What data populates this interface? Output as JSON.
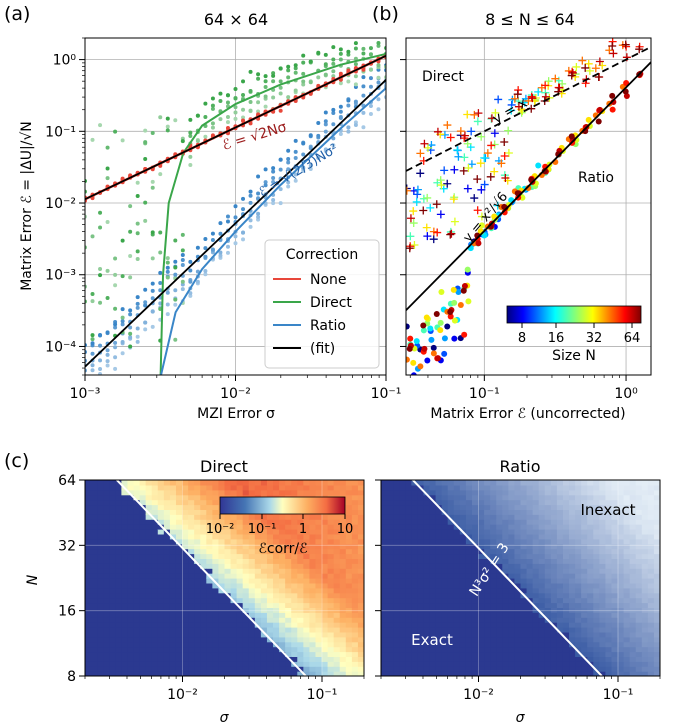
{
  "panel_labels": {
    "a": "(a)",
    "b": "(b)",
    "c": "(c)"
  },
  "chart_data": [
    {
      "id": "a",
      "type": "scatter",
      "title": "64 × 64",
      "xlabel": "MZI Error σ",
      "ylabel": "Matrix Error ℰ = |ΔU|/√N",
      "xscale": "log",
      "yscale": "log",
      "xlim": [
        0.001,
        0.1
      ],
      "ylim": [
        4e-05,
        2
      ],
      "x_ticks": [
        {
          "v": 0.001,
          "label": "10⁻³"
        },
        {
          "v": 0.01,
          "label": "10⁻²"
        },
        {
          "v": 0.1,
          "label": "10⁻¹"
        }
      ],
      "y_ticks": [
        {
          "v": 0.0001,
          "label": "10⁻⁴"
        },
        {
          "v": 0.001,
          "label": "10⁻³"
        },
        {
          "v": 0.01,
          "label": "10⁻²"
        },
        {
          "v": 0.1,
          "label": "10⁻¹"
        },
        {
          "v": 1,
          "label": "10⁰"
        }
      ],
      "legend": {
        "title": "Correction",
        "position": "lower-right",
        "entries": [
          {
            "name": "None",
            "color": "#e8473a"
          },
          {
            "name": "Direct",
            "color": "#3aa64a"
          },
          {
            "name": "Ratio",
            "color": "#3a86c8"
          },
          {
            "name": "(fit)",
            "color": "#000000"
          }
        ]
      },
      "annotations": [
        {
          "text": "ℰ = √2Nσ",
          "color": "#9b1b1b"
        },
        {
          "text": "ℰ = √(2/3)Nσ²",
          "color": "#1f5fa8"
        }
      ],
      "series": [
        {
          "name": "None",
          "color": "#e8473a",
          "mean_curve": [
            [
              0.001,
              0.0113
            ],
            [
              0.1,
              1.13
            ]
          ]
        },
        {
          "name": "Direct",
          "color": "#3aa64a",
          "mean_curve": [
            [
              0.00318,
              4e-05
            ],
            [
              0.0033,
              0.001
            ],
            [
              0.0036,
              0.01
            ],
            [
              0.0045,
              0.05
            ],
            [
              0.006,
              0.12
            ],
            [
              0.01,
              0.24
            ],
            [
              0.02,
              0.45
            ],
            [
              0.05,
              0.85
            ],
            [
              0.1,
              1.2
            ]
          ]
        },
        {
          "name": "Ratio",
          "color": "#3a86c8",
          "mean_curve": [
            [
              0.0032,
              4e-05
            ],
            [
              0.004,
              0.0003
            ],
            [
              0.006,
              0.0012
            ],
            [
              0.01,
              0.004
            ],
            [
              0.02,
              0.018
            ],
            [
              0.05,
              0.11
            ],
            [
              0.1,
              0.4
            ]
          ]
        },
        {
          "name": "(fit)",
          "color": "#000000",
          "lines": [
            [
              [
                0.001,
                0.0113
              ],
              [
                0.1,
                1.13
              ]
            ],
            [
              [
                0.001,
                5.22e-05
              ],
              [
                0.1,
                0.522
              ]
            ]
          ]
        }
      ]
    },
    {
      "id": "b",
      "type": "scatter",
      "title": "8 ≤ N ≤ 64",
      "xlabel": "Matrix Error ℰ (uncorrected)",
      "xscale": "log",
      "yscale": "log",
      "xlim": [
        0.028,
        1.5
      ],
      "ylim": [
        4e-05,
        2
      ],
      "x_ticks": [
        {
          "v": 0.1,
          "label": "10⁻¹"
        },
        {
          "v": 1,
          "label": "10⁰"
        }
      ],
      "annotations": [
        {
          "text": "Direct"
        },
        {
          "text": "Ratio"
        },
        {
          "text": "y = x"
        },
        {
          "text": "y = x²/√6"
        }
      ],
      "colorbar": {
        "label": "Size N",
        "ticks": [
          "8",
          "16",
          "32",
          "64"
        ],
        "colormap": "jet"
      },
      "reference_lines": [
        {
          "name": "y = x",
          "style": "dashed",
          "points": [
            [
              0.028,
              0.028
            ],
            [
              1.5,
              1.5
            ]
          ]
        },
        {
          "name": "y = x²/√6",
          "style": "solid",
          "points": [
            [
              0.028,
              0.00032
            ],
            [
              1.5,
              0.92
            ]
          ]
        }
      ]
    },
    {
      "id": "c-direct",
      "type": "heatmap",
      "title": "Direct",
      "xlabel": "σ",
      "ylabel": "N",
      "xscale": "log",
      "yscale": "log",
      "xlim": [
        0.002,
        0.2
      ],
      "ylim": [
        8,
        64
      ],
      "x_ticks": [
        {
          "v": 0.01,
          "label": "10⁻²"
        },
        {
          "v": 0.1,
          "label": "10⁻¹"
        }
      ],
      "y_ticks": [
        {
          "v": 8,
          "label": "8"
        },
        {
          "v": 16,
          "label": "16"
        },
        {
          "v": 32,
          "label": "32"
        },
        {
          "v": 64,
          "label": "64"
        }
      ],
      "colorbar": {
        "label": "ℰcorr/ℰ",
        "ticks": [
          "10⁻²",
          "10⁻¹",
          "1",
          "10"
        ],
        "colormap": "RdYlBu_r",
        "range": [
          0.01,
          10
        ]
      },
      "boundary": "N³σ² = 3"
    },
    {
      "id": "c-ratio",
      "type": "heatmap",
      "title": "Ratio",
      "xlabel": "σ",
      "xscale": "log",
      "yscale": "log",
      "xlim": [
        0.002,
        0.2
      ],
      "ylim": [
        8,
        64
      ],
      "x_ticks": [
        {
          "v": 0.01,
          "label": "10⁻²"
        },
        {
          "v": 0.1,
          "label": "10⁻¹"
        }
      ],
      "annotations": [
        {
          "text": "Inexact"
        },
        {
          "text": "Exact"
        },
        {
          "text": "N³σ² = 3"
        }
      ],
      "colormap": "Blues"
    }
  ]
}
